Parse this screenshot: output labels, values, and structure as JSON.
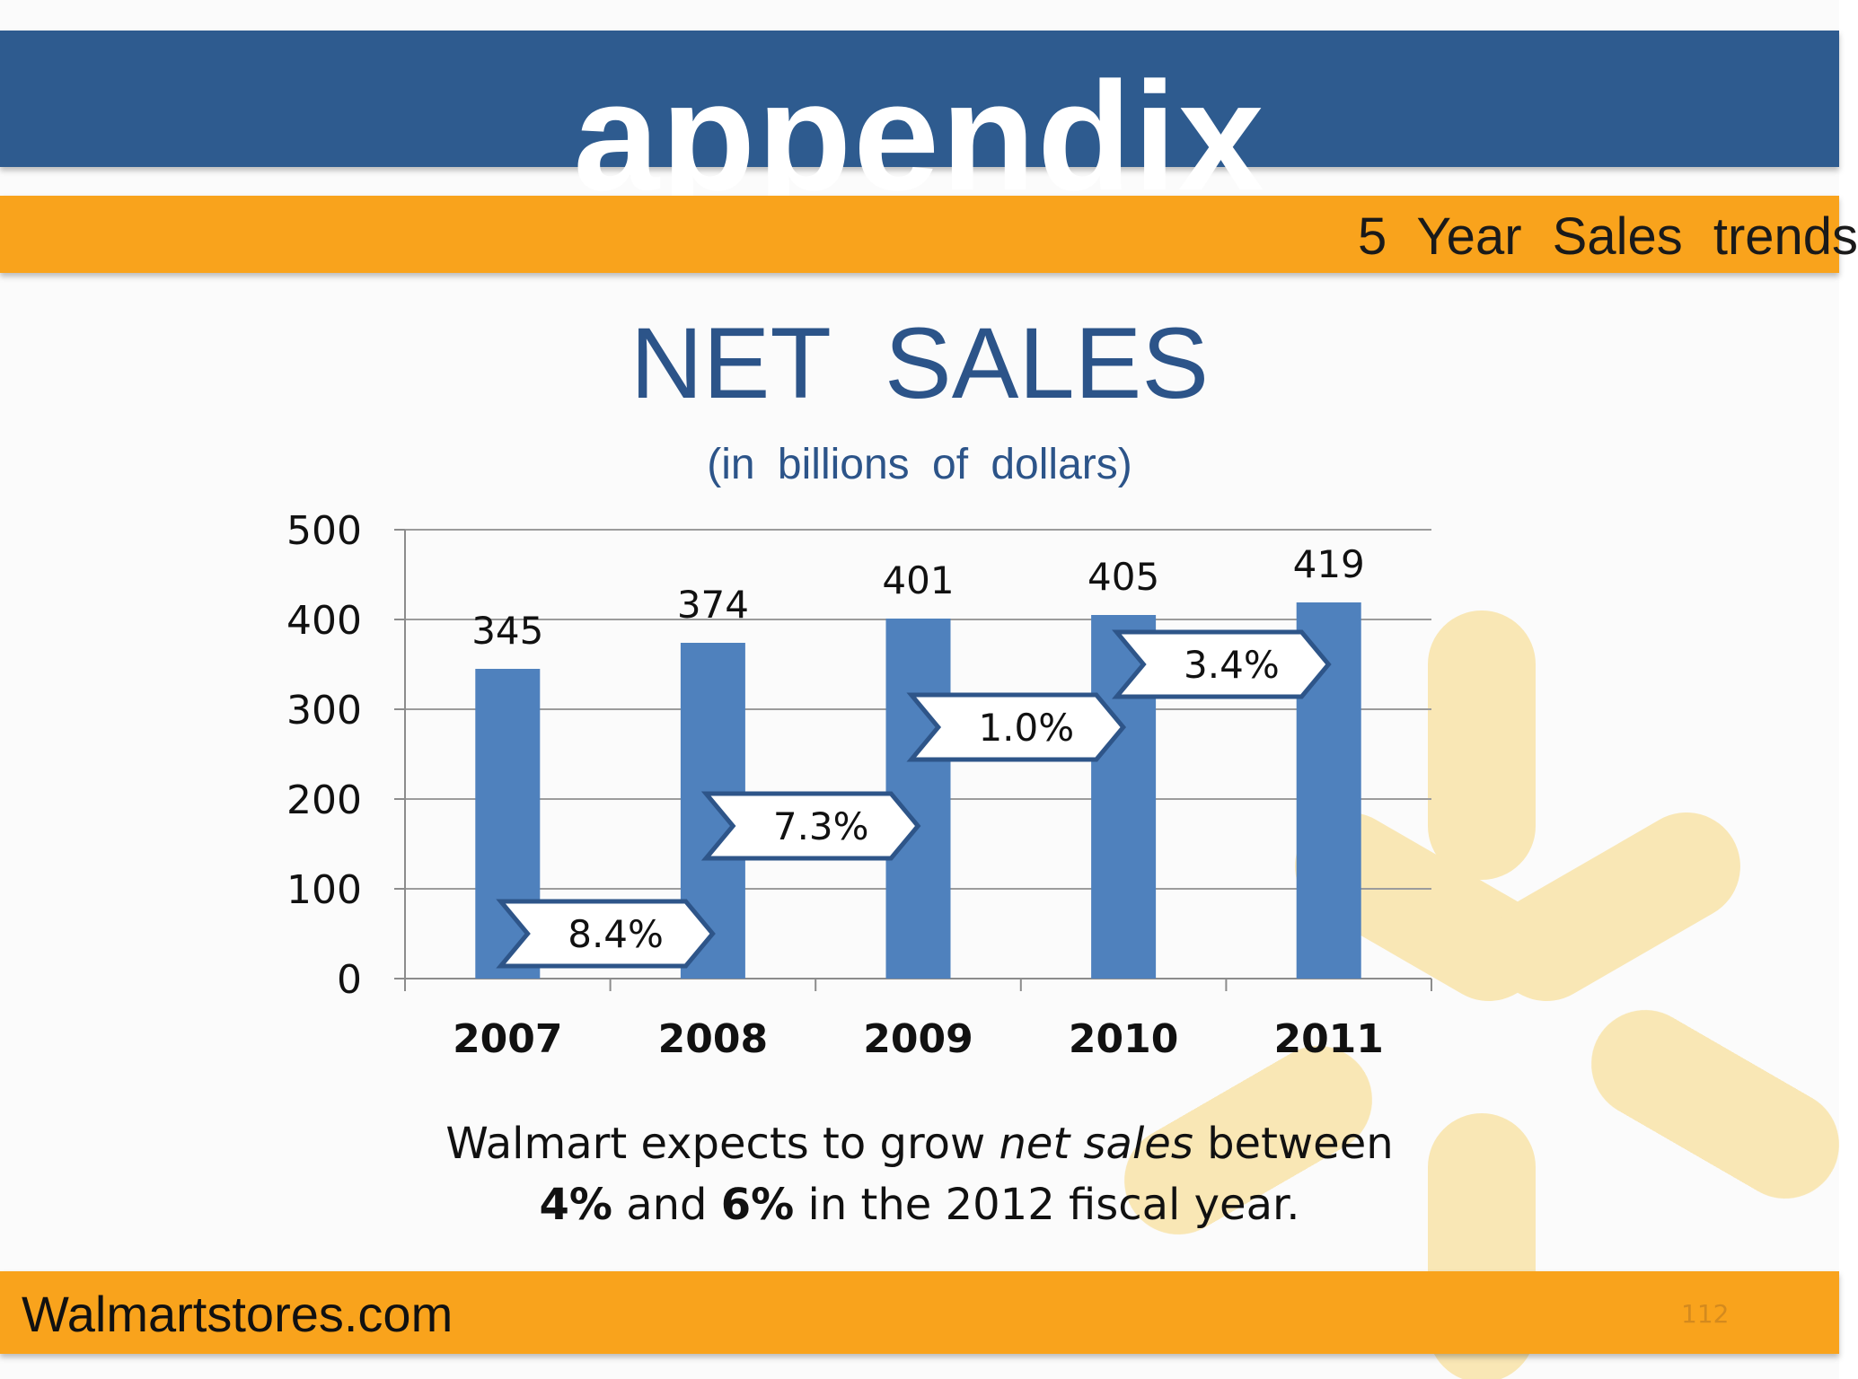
{
  "header": {
    "title": "appendix",
    "subtitle": "5 Year Sales trends"
  },
  "footer": {
    "site": "Walmartstores.com",
    "page_number": "112"
  },
  "colors": {
    "header_blue": "#2e5b8f",
    "band_orange": "#f9a31c",
    "bar_blue": "#4f81bd",
    "title_blue": "#2c5489",
    "spark_yellow": "#f8e3a8"
  },
  "chart_data": {
    "type": "bar",
    "title": "NET SALES",
    "subtitle": "(in billions of dollars)",
    "categories": [
      "2007",
      "2008",
      "2009",
      "2010",
      "2011"
    ],
    "values": [
      345,
      374,
      401,
      405,
      419
    ],
    "ylim": [
      0,
      500
    ],
    "yticks": [
      0,
      100,
      200,
      300,
      400,
      500
    ],
    "grid": true,
    "legend": "none",
    "annotations": [
      {
        "label": "8.4%",
        "between": [
          "2007",
          "2008"
        ],
        "level": 50
      },
      {
        "label": "7.3%",
        "between": [
          "2008",
          "2009"
        ],
        "level": 170
      },
      {
        "label": "1.0%",
        "between": [
          "2009",
          "2010"
        ],
        "level": 280
      },
      {
        "label": "3.4%",
        "between": [
          "2010",
          "2011"
        ],
        "level": 350
      }
    ]
  },
  "note": {
    "line1_a": "Walmart expects to grow ",
    "line1_b": "net sales",
    "line1_c": " between",
    "line2_a": "4%",
    "line2_b": " and ",
    "line2_c": "6%",
    "line2_d": " in the 2012 fiscal year."
  }
}
